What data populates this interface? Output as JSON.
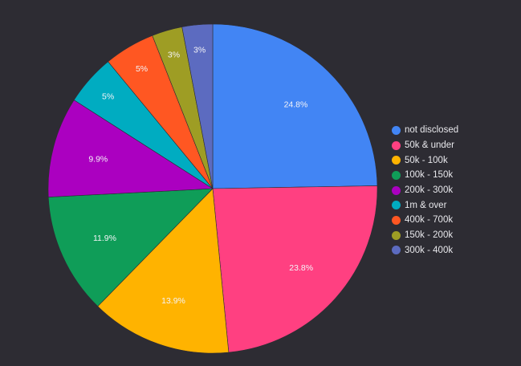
{
  "chart_data": {
    "type": "pie",
    "title": "",
    "legend_position": "right",
    "direction": "clockwise-from-top",
    "slices": [
      {
        "label": "not disclosed",
        "value": 24.8,
        "display": "24.8%",
        "color": "#4285f4"
      },
      {
        "label": "50k & under",
        "value": 23.8,
        "display": "23.8%",
        "color": "#ff4081"
      },
      {
        "label": "50k - 100k",
        "value": 13.9,
        "display": "13.9%",
        "color": "#ffb300"
      },
      {
        "label": "100k - 150k",
        "value": 11.9,
        "display": "11.9%",
        "color": "#0f9d58"
      },
      {
        "label": "200k - 300k",
        "value": 9.9,
        "display": "9.9%",
        "color": "#ab00c0"
      },
      {
        "label": "1m & over",
        "value": 5,
        "display": "5%",
        "color": "#00acc1"
      },
      {
        "label": "400k - 700k",
        "value": 5,
        "display": "5%",
        "color": "#ff5722"
      },
      {
        "label": "150k - 200k",
        "value": 3,
        "display": "3%",
        "color": "#9e9d24"
      },
      {
        "label": "300k - 400k",
        "value": 3,
        "display": "3%",
        "color": "#5c6bc0"
      }
    ]
  }
}
